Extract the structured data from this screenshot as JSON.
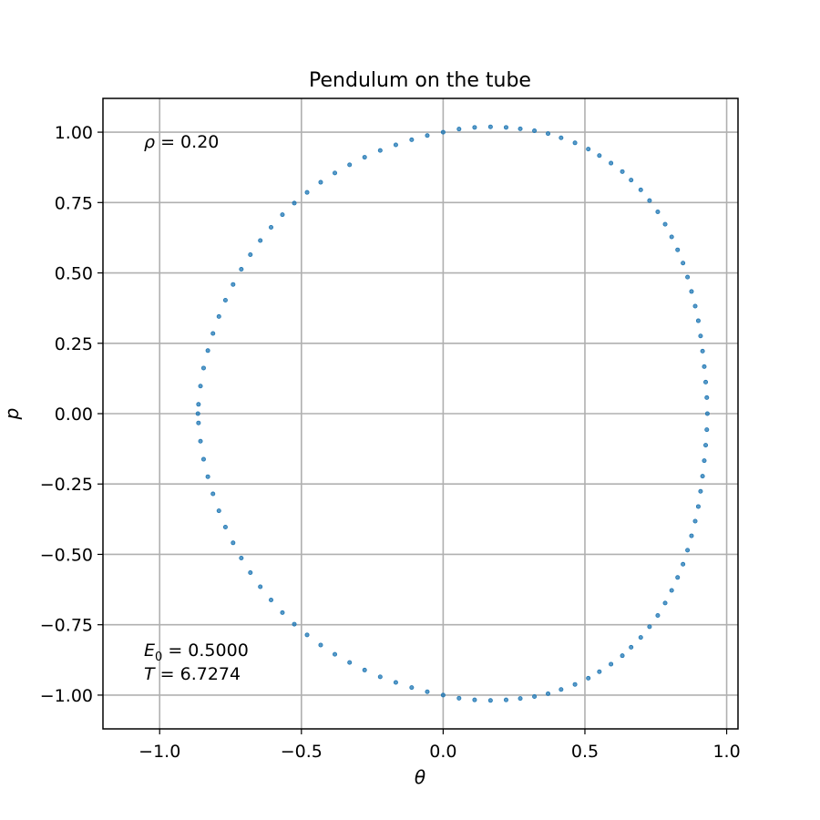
{
  "chart_data": {
    "type": "scatter",
    "title": "Pendulum on the tube",
    "xlabel": "θ",
    "ylabel": "p",
    "xlim": [
      -1.2,
      1.04
    ],
    "ylim": [
      -1.12,
      1.12
    ],
    "grid": true,
    "xticks": [
      -1.0,
      -0.5,
      0.0,
      0.5,
      1.0
    ],
    "xtick_labels": [
      "−1.0",
      "−0.5",
      "0.0",
      "0.5",
      "1.0"
    ],
    "yticks": [
      1.0,
      0.75,
      0.5,
      0.25,
      0.0,
      -0.25,
      -0.5,
      -0.75,
      -1.0
    ],
    "ytick_labels": [
      "1.00",
      "0.75",
      "0.50",
      "0.25",
      "0.00",
      "−0.25",
      "−0.50",
      "−0.75",
      "−1.00"
    ],
    "marker_color": "#1f77b4",
    "annotations": {
      "rho_symbol": "ρ",
      "rho_text": " = 0.20",
      "energy_symbol": "E",
      "energy_subscript": "0",
      "energy_text": " = 0.5000",
      "period_symbol": "T",
      "period_text": " = 6.7274"
    },
    "series": [
      {
        "points": [
          [
            0.0,
            1.0
          ],
          [
            0.056,
            1.011
          ],
          [
            0.111,
            1.017
          ],
          [
            0.167,
            1.019
          ],
          [
            0.222,
            1.017
          ],
          [
            0.272,
            1.012
          ],
          [
            0.322,
            1.005
          ],
          [
            0.37,
            0.995
          ],
          [
            0.416,
            0.98
          ],
          [
            0.465,
            0.962
          ],
          [
            0.512,
            0.94
          ],
          [
            0.551,
            0.917
          ],
          [
            0.592,
            0.89
          ],
          [
            0.632,
            0.86
          ],
          [
            0.663,
            0.83
          ],
          [
            0.697,
            0.795
          ],
          [
            0.728,
            0.757
          ],
          [
            0.757,
            0.717
          ],
          [
            0.783,
            0.673
          ],
          [
            0.806,
            0.628
          ],
          [
            0.827,
            0.582
          ],
          [
            0.846,
            0.535
          ],
          [
            0.862,
            0.485
          ],
          [
            0.876,
            0.434
          ],
          [
            0.889,
            0.382
          ],
          [
            0.9,
            0.33
          ],
          [
            0.908,
            0.276
          ],
          [
            0.915,
            0.222
          ],
          [
            0.921,
            0.167
          ],
          [
            0.926,
            0.112
          ],
          [
            0.93,
            0.057
          ],
          [
            0.932,
            0.0
          ],
          [
            0.93,
            -0.057
          ],
          [
            0.926,
            -0.112
          ],
          [
            0.921,
            -0.167
          ],
          [
            0.915,
            -0.222
          ],
          [
            0.908,
            -0.276
          ],
          [
            0.9,
            -0.33
          ],
          [
            0.889,
            -0.382
          ],
          [
            0.876,
            -0.434
          ],
          [
            0.862,
            -0.485
          ],
          [
            0.846,
            -0.535
          ],
          [
            0.827,
            -0.582
          ],
          [
            0.806,
            -0.628
          ],
          [
            0.783,
            -0.673
          ],
          [
            0.757,
            -0.717
          ],
          [
            0.728,
            -0.757
          ],
          [
            0.697,
            -0.795
          ],
          [
            0.663,
            -0.83
          ],
          [
            0.632,
            -0.86
          ],
          [
            0.592,
            -0.89
          ],
          [
            0.551,
            -0.917
          ],
          [
            0.512,
            -0.94
          ],
          [
            0.465,
            -0.962
          ],
          [
            0.416,
            -0.98
          ],
          [
            0.37,
            -0.995
          ],
          [
            0.322,
            -1.005
          ],
          [
            0.272,
            -1.012
          ],
          [
            0.222,
            -1.017
          ],
          [
            0.167,
            -1.019
          ],
          [
            0.111,
            -1.017
          ],
          [
            0.056,
            -1.011
          ],
          [
            0.0,
            -1.0
          ],
          [
            -0.056,
            -0.988
          ],
          [
            -0.111,
            -0.973
          ],
          [
            -0.167,
            -0.955
          ],
          [
            -0.222,
            -0.935
          ],
          [
            -0.277,
            -0.911
          ],
          [
            -0.33,
            -0.884
          ],
          [
            -0.382,
            -0.855
          ],
          [
            -0.432,
            -0.822
          ],
          [
            -0.48,
            -0.786
          ],
          [
            -0.525,
            -0.748
          ],
          [
            -0.567,
            -0.707
          ],
          [
            -0.607,
            -0.662
          ],
          [
            -0.645,
            -0.615
          ],
          [
            -0.68,
            -0.565
          ],
          [
            -0.712,
            -0.513
          ],
          [
            -0.741,
            -0.459
          ],
          [
            -0.768,
            -0.403
          ],
          [
            -0.791,
            -0.345
          ],
          [
            -0.812,
            -0.285
          ],
          [
            -0.83,
            -0.224
          ],
          [
            -0.845,
            -0.162
          ],
          [
            -0.856,
            -0.098
          ],
          [
            -0.863,
            -0.033
          ],
          [
            -0.865,
            0.0
          ],
          [
            -0.863,
            0.033
          ],
          [
            -0.856,
            0.098
          ],
          [
            -0.845,
            0.162
          ],
          [
            -0.83,
            0.224
          ],
          [
            -0.812,
            0.285
          ],
          [
            -0.791,
            0.345
          ],
          [
            -0.768,
            0.403
          ],
          [
            -0.741,
            0.459
          ],
          [
            -0.712,
            0.513
          ],
          [
            -0.68,
            0.565
          ],
          [
            -0.645,
            0.615
          ],
          [
            -0.607,
            0.662
          ],
          [
            -0.567,
            0.707
          ],
          [
            -0.525,
            0.748
          ],
          [
            -0.48,
            0.786
          ],
          [
            -0.432,
            0.822
          ],
          [
            -0.382,
            0.855
          ],
          [
            -0.33,
            0.884
          ],
          [
            -0.277,
            0.911
          ],
          [
            -0.222,
            0.935
          ],
          [
            -0.167,
            0.955
          ],
          [
            -0.111,
            0.973
          ],
          [
            -0.056,
            0.988
          ]
        ]
      }
    ]
  }
}
